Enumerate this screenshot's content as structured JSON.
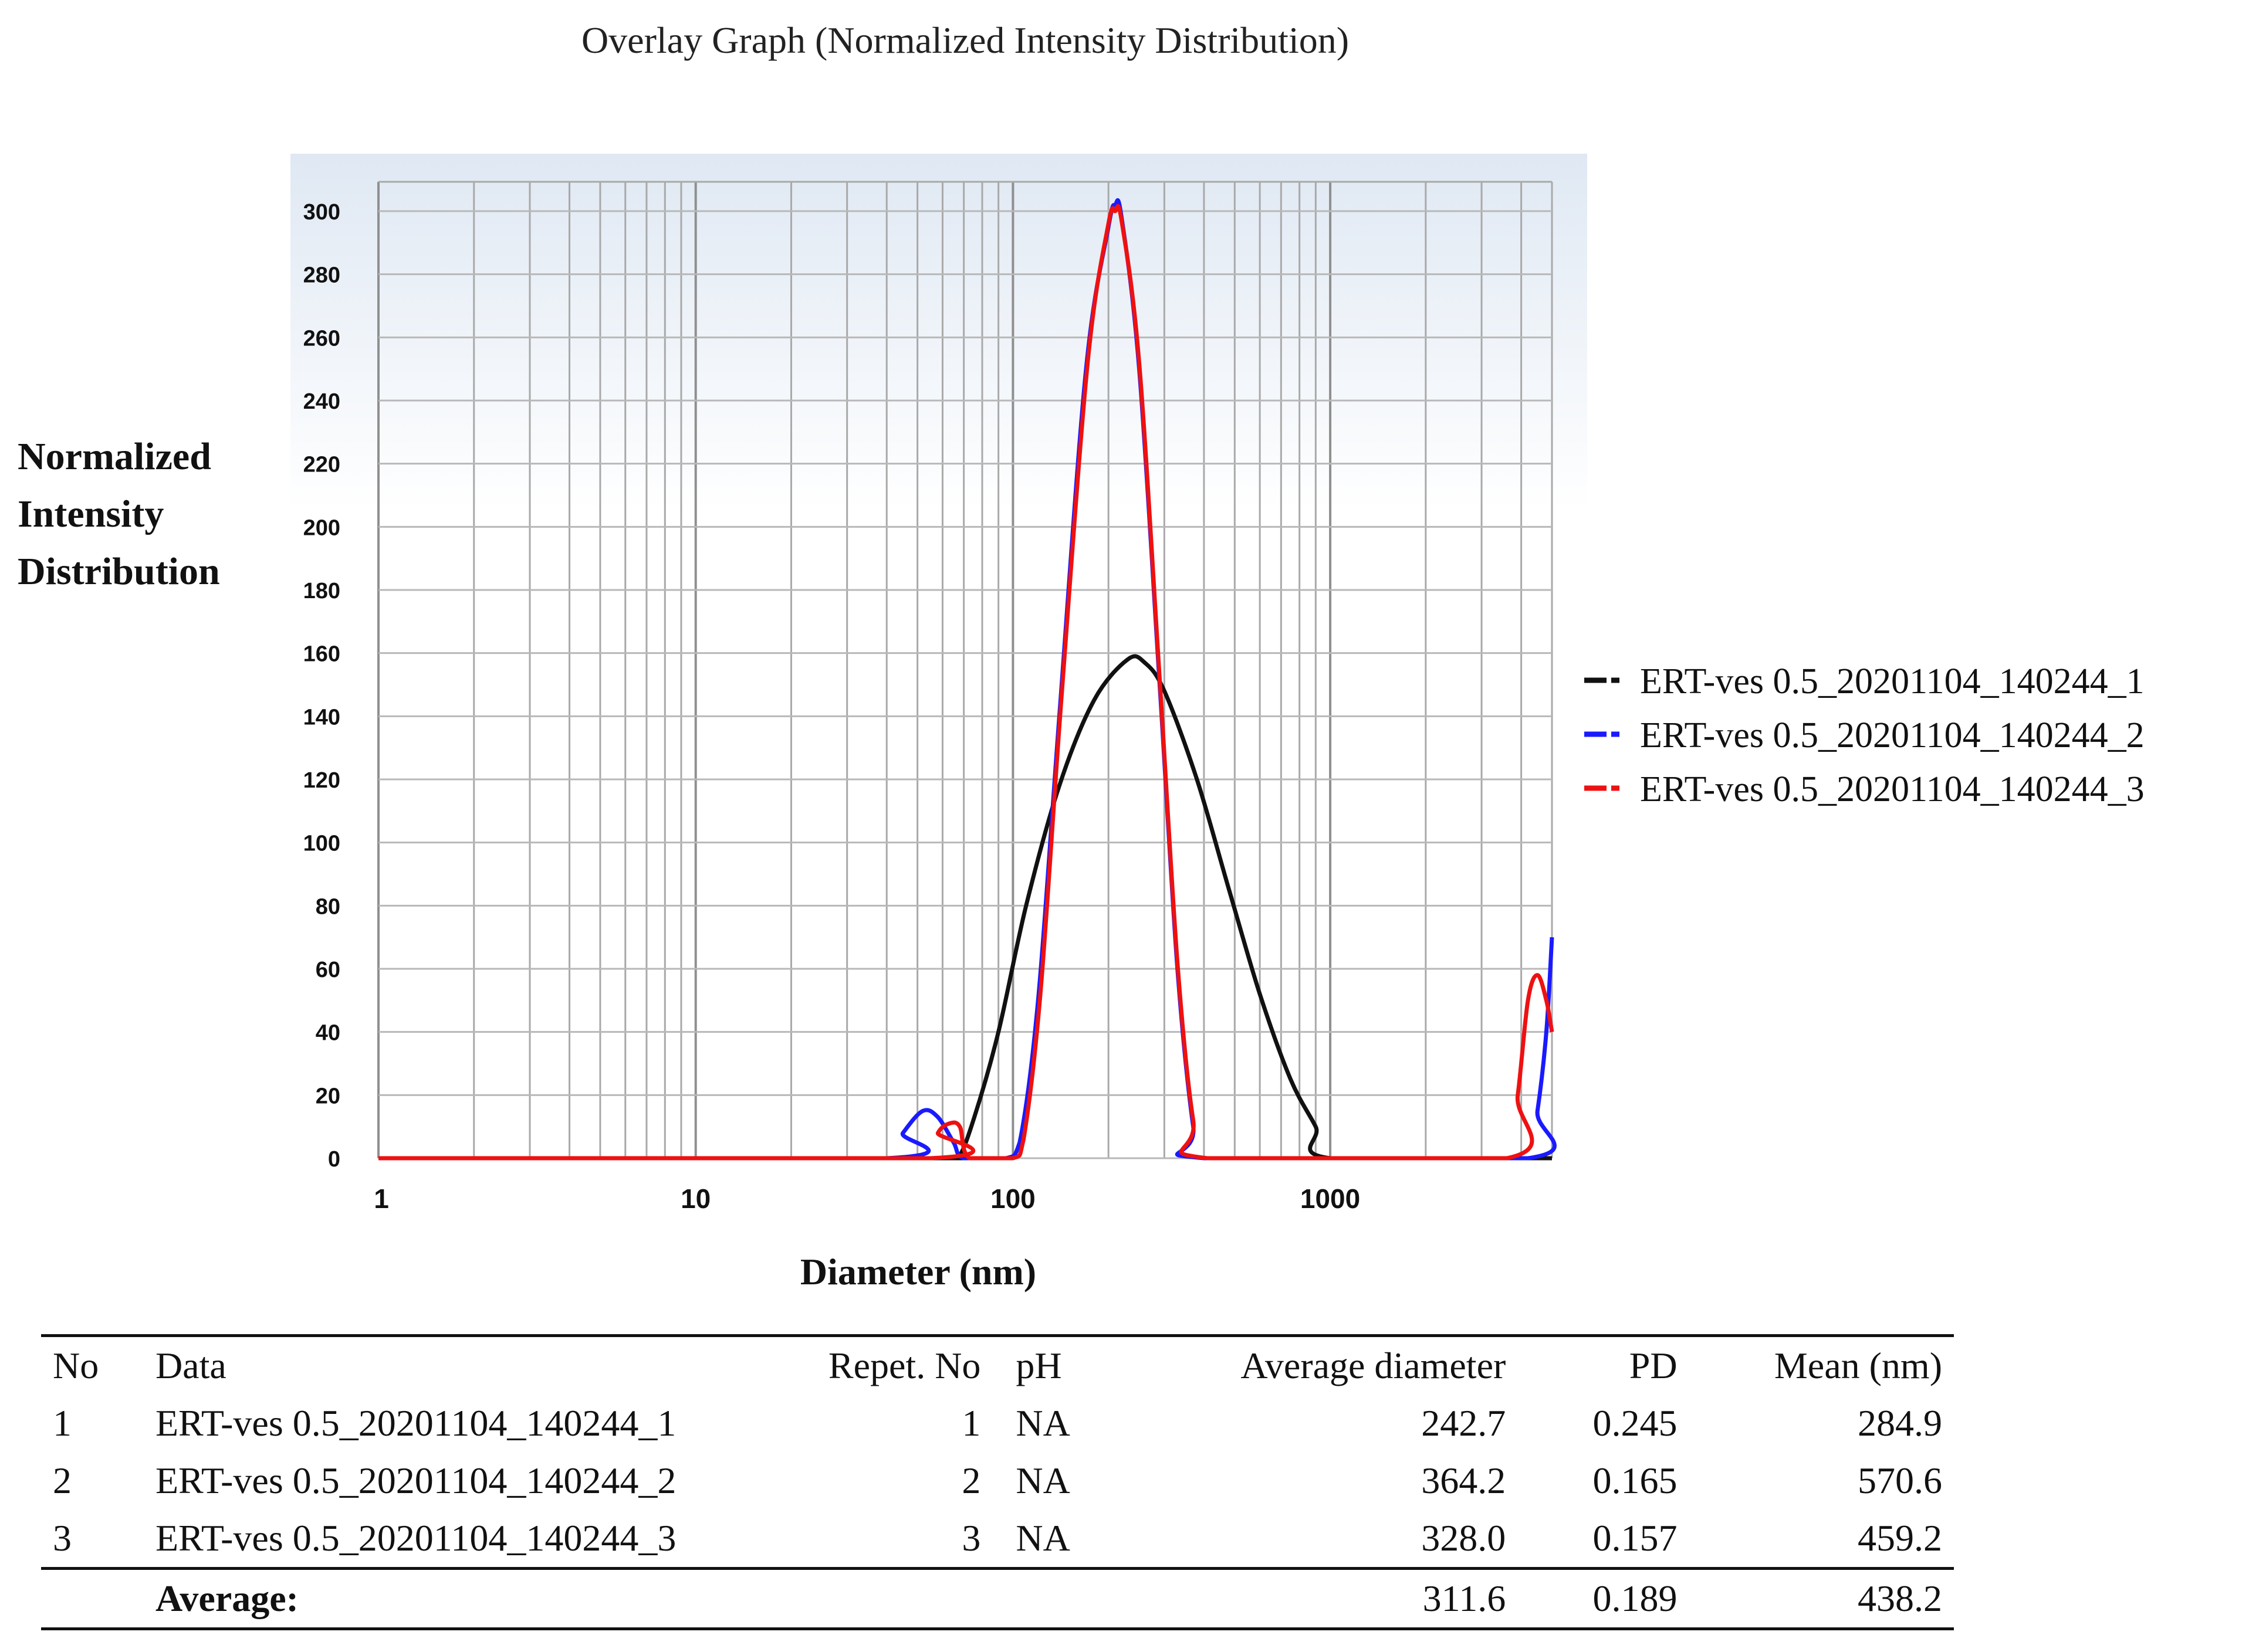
{
  "chart_data": {
    "type": "line",
    "title": "Overlay Graph (Normalized Intensity Distribution)",
    "xlabel": "Diameter (nm)",
    "ylabel": [
      "Normalized",
      "Intensity",
      "Distribution"
    ],
    "xscale": "log",
    "xlim": [
      1,
      5000
    ],
    "ylim": [
      0,
      300
    ],
    "xticks": [
      "1",
      "10",
      "100",
      "1000"
    ],
    "yticks": [
      "0",
      "20",
      "40",
      "60",
      "80",
      "100",
      "120",
      "140",
      "160",
      "180",
      "200",
      "220",
      "240",
      "260",
      "280",
      "300"
    ],
    "grid": true,
    "legend_position": "right",
    "series": [
      {
        "name": "ERT-ves 0.5_20201104_140244_1",
        "color": "#111111",
        "points": [
          [
            1,
            0
          ],
          [
            60,
            0
          ],
          [
            67,
            0
          ],
          [
            75,
            12
          ],
          [
            90,
            40
          ],
          [
            110,
            80
          ],
          [
            140,
            118
          ],
          [
            180,
            145
          ],
          [
            230,
            158
          ],
          [
            260,
            157
          ],
          [
            300,
            148
          ],
          [
            380,
            120
          ],
          [
            480,
            85
          ],
          [
            600,
            52
          ],
          [
            750,
            25
          ],
          [
            900,
            10
          ],
          [
            1000,
            0
          ],
          [
            5000,
            0
          ]
        ]
      },
      {
        "name": "ERT-ves 0.5_20201104_140244_2",
        "color": "#1a1aff",
        "points": [
          [
            1,
            0
          ],
          [
            40,
            0
          ],
          [
            45,
            8
          ],
          [
            52,
            15
          ],
          [
            58,
            13
          ],
          [
            65,
            5
          ],
          [
            70,
            0
          ],
          [
            95,
            0
          ],
          [
            105,
            5
          ],
          [
            120,
            50
          ],
          [
            140,
            140
          ],
          [
            170,
            250
          ],
          [
            200,
            295
          ],
          [
            210,
            302
          ],
          [
            220,
            298
          ],
          [
            250,
            250
          ],
          [
            290,
            150
          ],
          [
            330,
            60
          ],
          [
            370,
            10
          ],
          [
            400,
            0
          ],
          [
            4200,
            0
          ],
          [
            4500,
            15
          ],
          [
            4800,
            40
          ],
          [
            5000,
            70
          ]
        ]
      },
      {
        "name": "ERT-ves 0.5_20201104_140244_3",
        "color": "#ee1111",
        "points": [
          [
            1,
            0
          ],
          [
            55,
            0
          ],
          [
            58,
            8
          ],
          [
            63,
            11
          ],
          [
            68,
            10
          ],
          [
            73,
            0
          ],
          [
            100,
            0
          ],
          [
            108,
            6
          ],
          [
            122,
            52
          ],
          [
            142,
            145
          ],
          [
            172,
            252
          ],
          [
            200,
            296
          ],
          [
            210,
            300
          ],
          [
            220,
            297
          ],
          [
            250,
            252
          ],
          [
            290,
            152
          ],
          [
            330,
            62
          ],
          [
            370,
            12
          ],
          [
            410,
            0
          ],
          [
            3600,
            0
          ],
          [
            3900,
            20
          ],
          [
            4200,
            50
          ],
          [
            4500,
            58
          ],
          [
            4800,
            50
          ],
          [
            5000,
            40
          ]
        ]
      }
    ]
  },
  "table": {
    "headers": [
      "No",
      "Data",
      "Repet. No",
      "pH",
      "Average diameter",
      "PD",
      "Mean (nm)"
    ],
    "rows": [
      [
        "1",
        "ERT-ves 0.5_20201104_140244_1",
        "1",
        "NA",
        "242.7",
        "0.245",
        "284.9"
      ],
      [
        "2",
        "ERT-ves 0.5_20201104_140244_2",
        "2",
        "NA",
        "364.2",
        "0.165",
        "570.6"
      ],
      [
        "3",
        "ERT-ves 0.5_20201104_140244_3",
        "3",
        "NA",
        "328.0",
        "0.157",
        "459.2"
      ]
    ],
    "average": {
      "label": "Average:",
      "average_diameter": "311.6",
      "pd": "0.189",
      "mean": "438.2"
    }
  }
}
